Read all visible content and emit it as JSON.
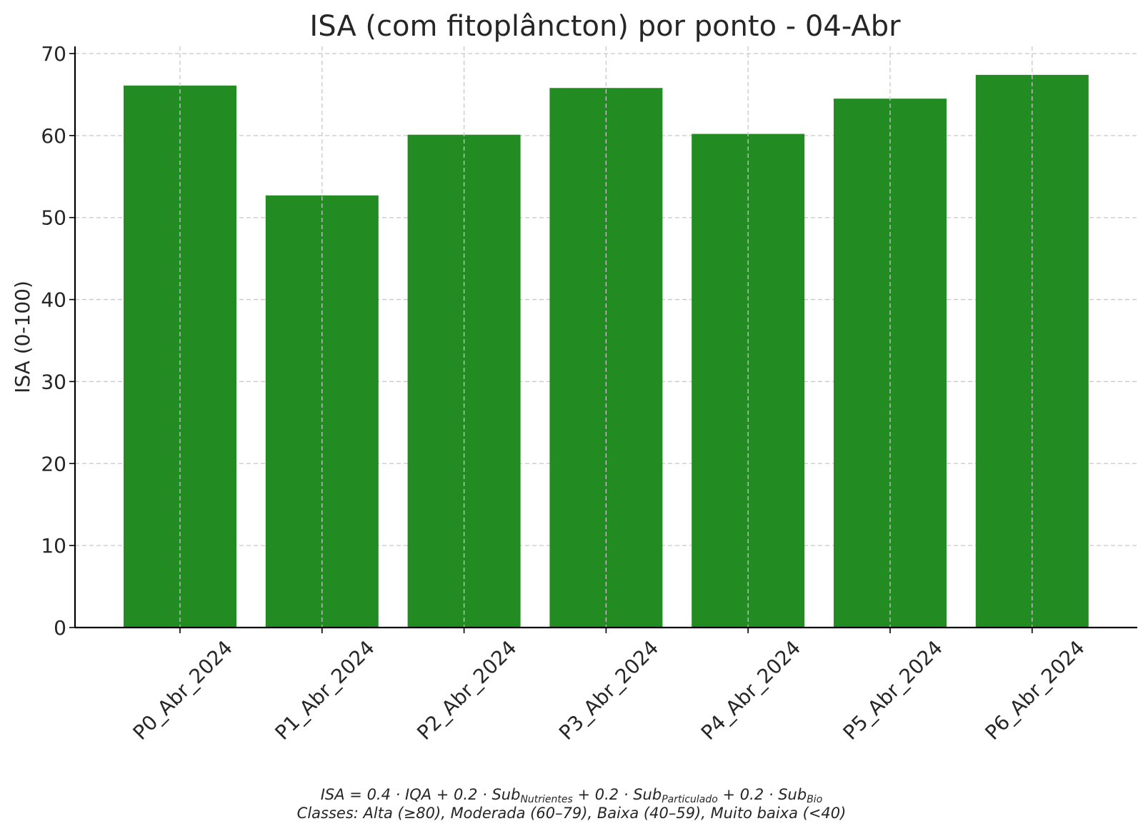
{
  "chart_data": {
    "type": "bar",
    "title": "ISA (com fitoplâncton) por ponto - 04-Abr",
    "xlabel": "",
    "ylabel": "ISA (0-100)",
    "categories": [
      "P0_Abr_2024",
      "P1_Abr_2024",
      "P2_Abr_2024",
      "P3_Abr_2024",
      "P4_Abr_2024",
      "P5_Abr_2024",
      "P6_Abr_2024"
    ],
    "values": [
      66.1,
      52.7,
      60.1,
      65.8,
      60.2,
      64.5,
      67.4
    ],
    "ylim": [
      0,
      70
    ],
    "yticks": [
      "0",
      "10",
      "20",
      "30",
      "40",
      "50",
      "60",
      "70"
    ],
    "grid": true,
    "bar_color": "#228b22",
    "grid_color": "#c8c8c8",
    "axis_color": "#000000"
  },
  "footnote": {
    "formula": {
      "lhs": "ISA",
      "eq": " = 0.4 · ",
      "iqa": "IQA",
      "t1": " + 0.2 · ",
      "sub1_base": "Sub",
      "sub1_idx": "Nutrientes",
      "t2": " + 0.2 · ",
      "sub2_base": "Sub",
      "sub2_idx": "Particulado",
      "t3": " + 0.2 · ",
      "sub3_base": "Sub",
      "sub3_idx": "Bio"
    },
    "classes": "Classes: Alta (≥80), Moderada (60–79), Baixa (40–59), Muito baixa (<40)"
  }
}
